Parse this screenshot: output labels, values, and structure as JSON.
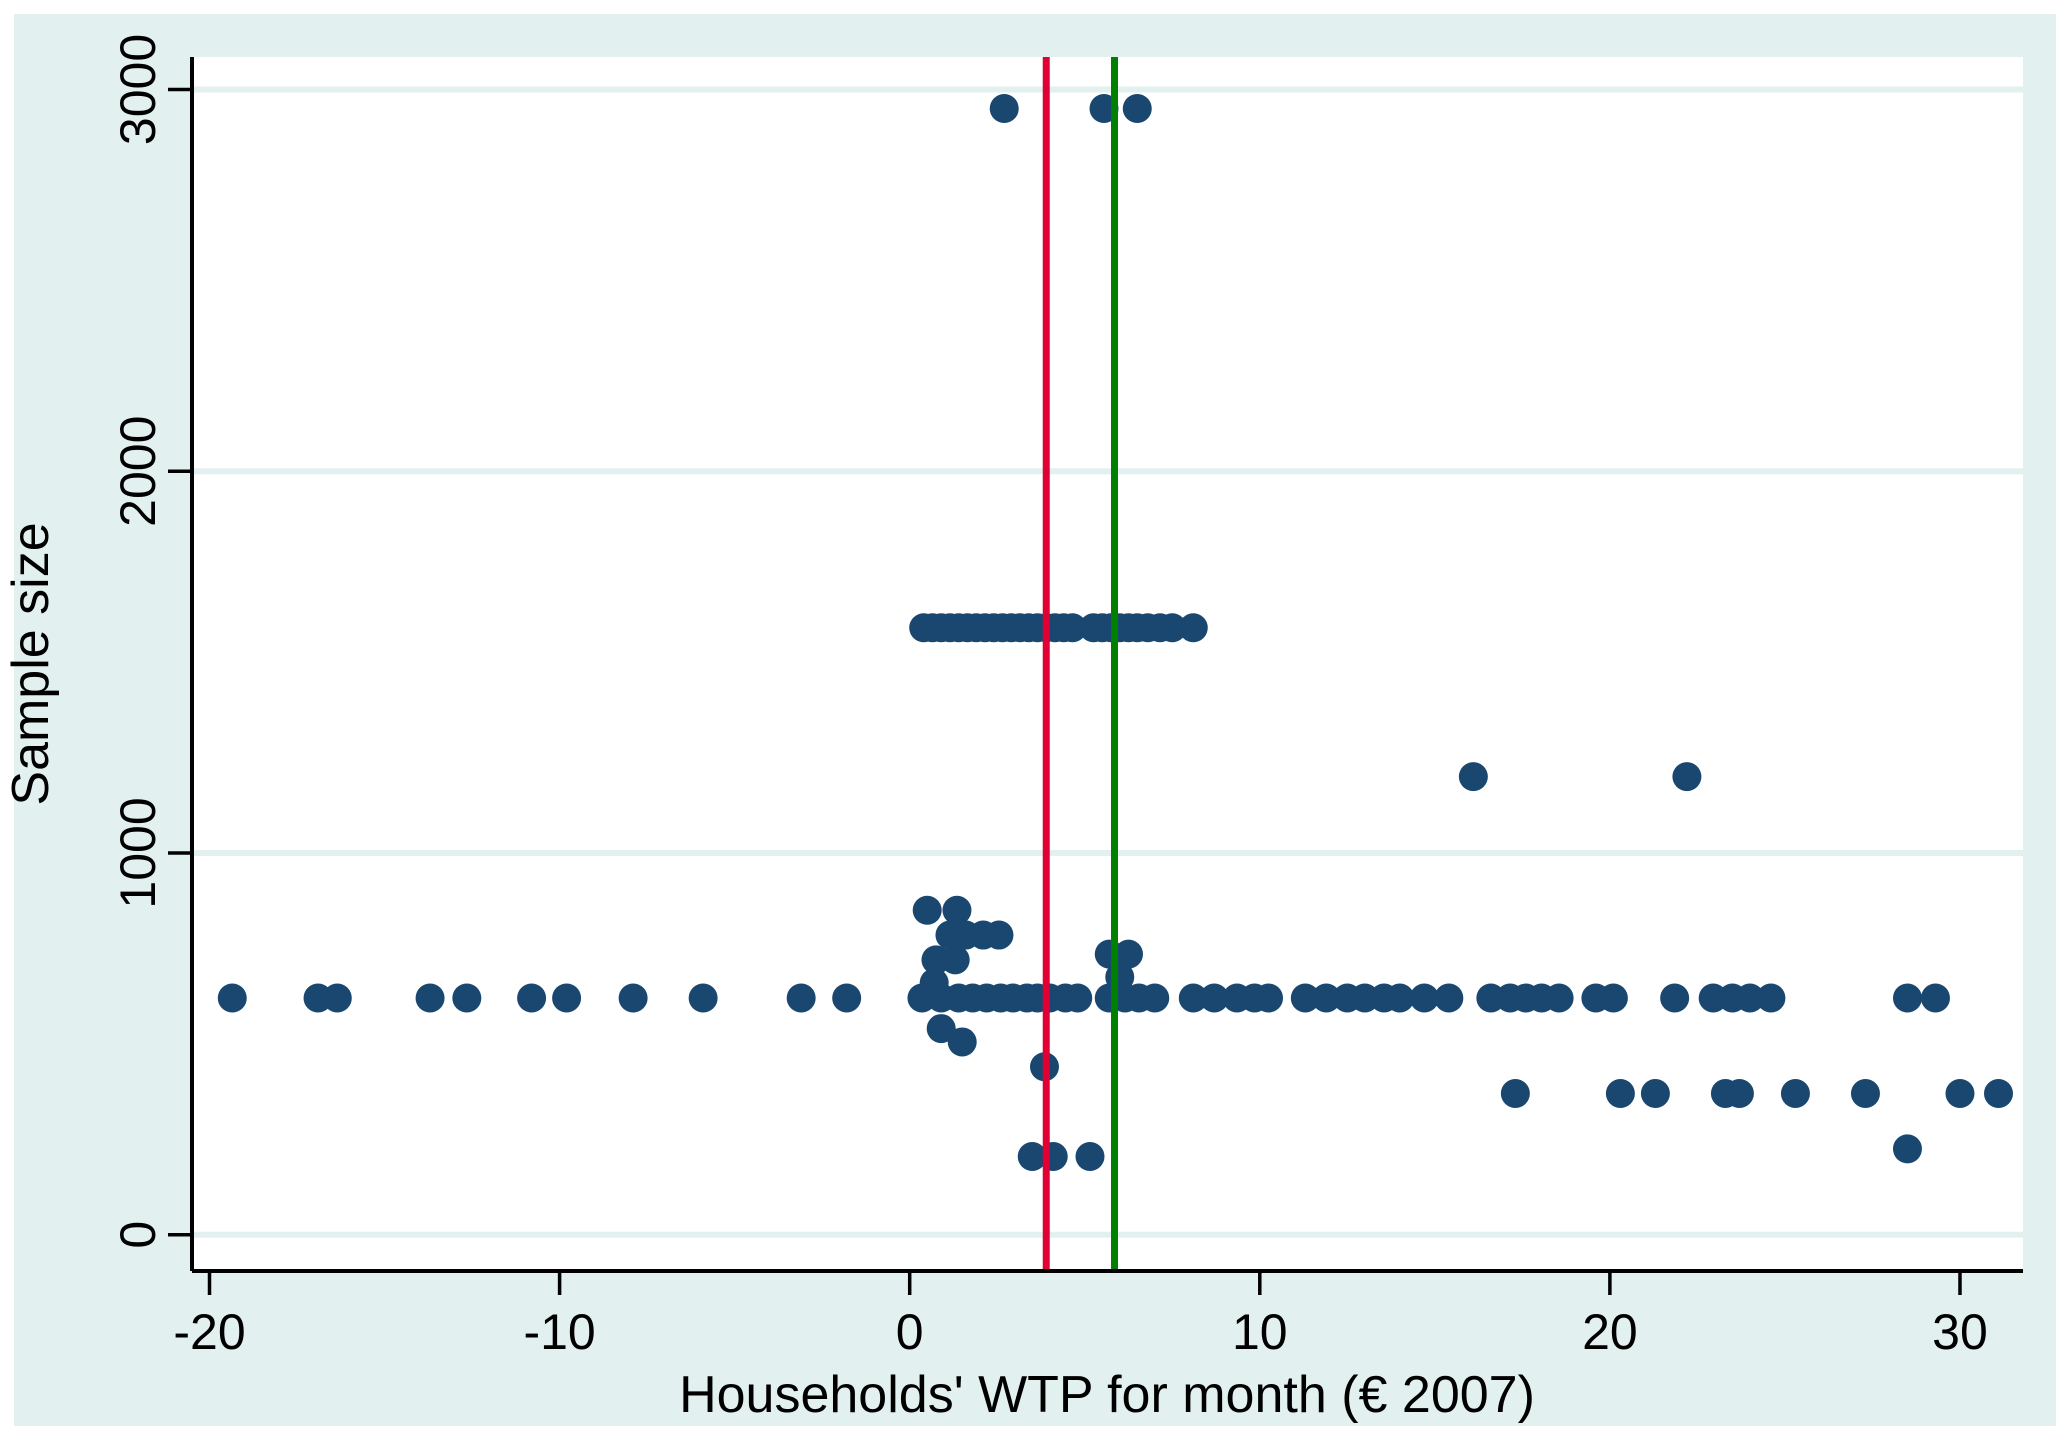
{
  "style": {
    "page_bg": "#ffffff",
    "figure_bg": "#e2f0ef",
    "plot_bg": "#ffffff",
    "grid_color": "#e2f0ef",
    "axis_color": "#000000",
    "text_color": "#000000",
    "point_color": "#1a476f",
    "red_line_color": "#e00033",
    "green_line_color": "#008000"
  },
  "chart_data": {
    "type": "scatter",
    "title": "",
    "xlabel": "Households' WTP for month (€ 2007)",
    "ylabel": "Sample size",
    "xlim": [
      -20.5,
      31.8
    ],
    "ylim": [
      -95,
      3085
    ],
    "xticks": [
      -20,
      -10,
      0,
      10,
      20,
      30
    ],
    "yticks": [
      0,
      1000,
      2000,
      3000
    ],
    "grid": "horizontal-only",
    "legend": "none",
    "marker": "filled-circle",
    "reference_lines": [
      {
        "axis": "x",
        "value": 3.9,
        "color": "#e00033"
      },
      {
        "axis": "x",
        "value": 5.85,
        "color": "#008000"
      }
    ],
    "points": [
      [
        2.7,
        2950
      ],
      [
        5.55,
        2950
      ],
      [
        6.5,
        2950
      ],
      [
        0.4,
        1590
      ],
      [
        0.65,
        1590
      ],
      [
        0.9,
        1590
      ],
      [
        1.15,
        1590
      ],
      [
        1.4,
        1590
      ],
      [
        1.65,
        1590
      ],
      [
        1.9,
        1590
      ],
      [
        2.15,
        1590
      ],
      [
        2.4,
        1590
      ],
      [
        2.65,
        1590
      ],
      [
        2.9,
        1590
      ],
      [
        3.15,
        1590
      ],
      [
        3.4,
        1590
      ],
      [
        3.65,
        1590
      ],
      [
        3.9,
        1590
      ],
      [
        4.15,
        1590
      ],
      [
        4.4,
        1590
      ],
      [
        4.65,
        1590
      ],
      [
        5.25,
        1590
      ],
      [
        5.5,
        1590
      ],
      [
        5.75,
        1590
      ],
      [
        6.0,
        1590
      ],
      [
        6.25,
        1590
      ],
      [
        6.5,
        1590
      ],
      [
        6.8,
        1590
      ],
      [
        7.15,
        1590
      ],
      [
        7.5,
        1590
      ],
      [
        8.1,
        1590
      ],
      [
        16.1,
        1200
      ],
      [
        22.2,
        1200
      ],
      [
        0.5,
        850
      ],
      [
        1.35,
        850
      ],
      [
        1.15,
        785
      ],
      [
        1.6,
        785
      ],
      [
        2.1,
        785
      ],
      [
        2.55,
        785
      ],
      [
        0.75,
        720
      ],
      [
        1.3,
        720
      ],
      [
        5.7,
        735
      ],
      [
        6.25,
        735
      ],
      [
        0.7,
        660
      ],
      [
        6.0,
        675
      ],
      [
        -19.35,
        620
      ],
      [
        -16.9,
        620
      ],
      [
        -16.35,
        620
      ],
      [
        -13.7,
        620
      ],
      [
        -12.65,
        620
      ],
      [
        -10.8,
        620
      ],
      [
        -9.8,
        620
      ],
      [
        -7.9,
        620
      ],
      [
        -5.9,
        620
      ],
      [
        -3.1,
        620
      ],
      [
        -1.8,
        620
      ],
      [
        0.35,
        620
      ],
      [
        0.9,
        620
      ],
      [
        1.4,
        620
      ],
      [
        1.8,
        620
      ],
      [
        2.2,
        620
      ],
      [
        2.6,
        620
      ],
      [
        2.95,
        620
      ],
      [
        3.35,
        620
      ],
      [
        3.65,
        620
      ],
      [
        4.0,
        620
      ],
      [
        4.45,
        620
      ],
      [
        4.8,
        620
      ],
      [
        5.7,
        620
      ],
      [
        6.15,
        620
      ],
      [
        6.55,
        620
      ],
      [
        7.0,
        620
      ],
      [
        8.1,
        620
      ],
      [
        8.7,
        620
      ],
      [
        9.35,
        620
      ],
      [
        9.85,
        620
      ],
      [
        10.25,
        620
      ],
      [
        11.3,
        620
      ],
      [
        11.9,
        620
      ],
      [
        12.5,
        620
      ],
      [
        13.0,
        620
      ],
      [
        13.55,
        620
      ],
      [
        14.0,
        620
      ],
      [
        14.7,
        620
      ],
      [
        15.4,
        620
      ],
      [
        16.6,
        620
      ],
      [
        17.15,
        620
      ],
      [
        17.6,
        620
      ],
      [
        18.05,
        620
      ],
      [
        18.55,
        620
      ],
      [
        19.6,
        620
      ],
      [
        20.1,
        620
      ],
      [
        21.85,
        620
      ],
      [
        22.95,
        620
      ],
      [
        23.5,
        620
      ],
      [
        24.0,
        620
      ],
      [
        24.6,
        620
      ],
      [
        28.5,
        620
      ],
      [
        29.3,
        620
      ],
      [
        0.9,
        540
      ],
      [
        1.5,
        505
      ],
      [
        3.85,
        440
      ],
      [
        17.3,
        370
      ],
      [
        20.3,
        370
      ],
      [
        21.3,
        370
      ],
      [
        23.3,
        370
      ],
      [
        23.7,
        370
      ],
      [
        25.3,
        370
      ],
      [
        27.3,
        370
      ],
      [
        30.0,
        370
      ],
      [
        31.1,
        370
      ],
      [
        28.5,
        225
      ],
      [
        3.5,
        205
      ],
      [
        4.1,
        205
      ],
      [
        5.15,
        205
      ]
    ]
  }
}
